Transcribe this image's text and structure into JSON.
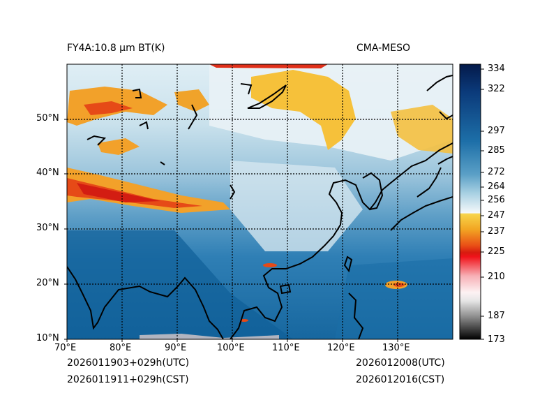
{
  "header": {
    "left_title": "FY4A:10.8 μm BT(K)",
    "right_title": "CMA-MESO"
  },
  "map": {
    "lon_labels": [
      "70°E",
      "80°E",
      "90°E",
      "100°E",
      "110°E",
      "120°E",
      "130°E"
    ],
    "lat_labels": [
      "50°N",
      "40°N",
      "30°N",
      "20°N",
      "10°N"
    ],
    "lon_range": [
      70,
      140
    ],
    "lat_range": [
      10,
      60
    ]
  },
  "colorbar": {
    "min": 173,
    "max": 337,
    "tick_values": [
      334,
      322,
      297,
      285,
      272,
      264,
      256,
      247,
      237,
      225,
      210,
      187,
      173
    ],
    "tick_labels": [
      "334",
      "322",
      "297",
      "285",
      "272",
      "264",
      "256",
      "247",
      "237",
      "225",
      "210",
      "187",
      "173"
    ]
  },
  "footer": {
    "left_line1": "2026011903+029h(UTC)",
    "left_line2": "2026011911+029h(CST)",
    "right_line1": "2026012008(UTC)",
    "right_line2": "2026012016(CST)"
  }
}
